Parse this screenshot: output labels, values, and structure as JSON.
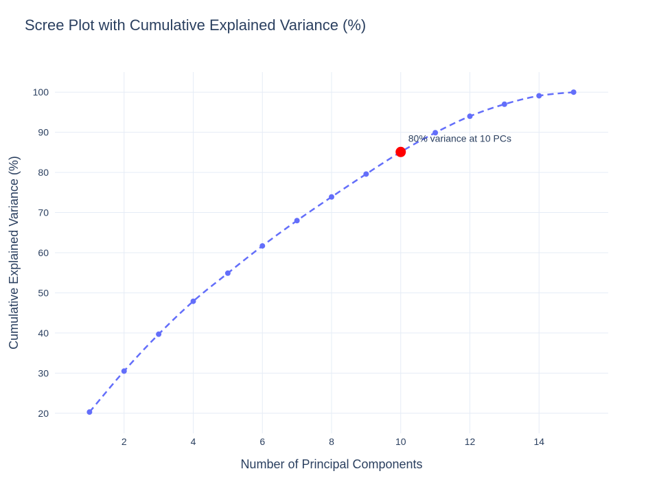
{
  "chart_data": {
    "type": "line",
    "title": "Scree Plot with Cumulative Explained Variance (%)",
    "xlabel": "Number of Principal Components",
    "ylabel": "Cumulative Explained Variance (%)",
    "x": [
      1,
      2,
      3,
      4,
      5,
      6,
      7,
      8,
      9,
      10,
      11,
      12,
      13,
      14,
      15
    ],
    "series": [
      {
        "values": [
          20.3,
          30.5,
          39.7,
          47.9,
          54.9,
          61.7,
          68.0,
          73.9,
          79.6,
          85.1,
          89.9,
          94.0,
          97.0,
          99.1,
          100.0
        ]
      }
    ],
    "xlim": [
      0,
      16
    ],
    "ylim": [
      15,
      105
    ],
    "xticks": [
      2,
      4,
      6,
      8,
      10,
      12,
      14
    ],
    "yticks": [
      20,
      30,
      40,
      50,
      60,
      70,
      80,
      90,
      100
    ],
    "line_style": "dashed",
    "line_shape": "smooth",
    "markers": true,
    "grid": true,
    "colors": {
      "series": "#636efa",
      "highlight": "#ff0000",
      "grid": "#e5ecf6",
      "text": "#2a3f5f"
    },
    "highlight": {
      "x": 10,
      "y": 85.1
    },
    "annotation": {
      "text": "80% variance at 10 PCs",
      "x": 10,
      "y": 85.1
    }
  }
}
